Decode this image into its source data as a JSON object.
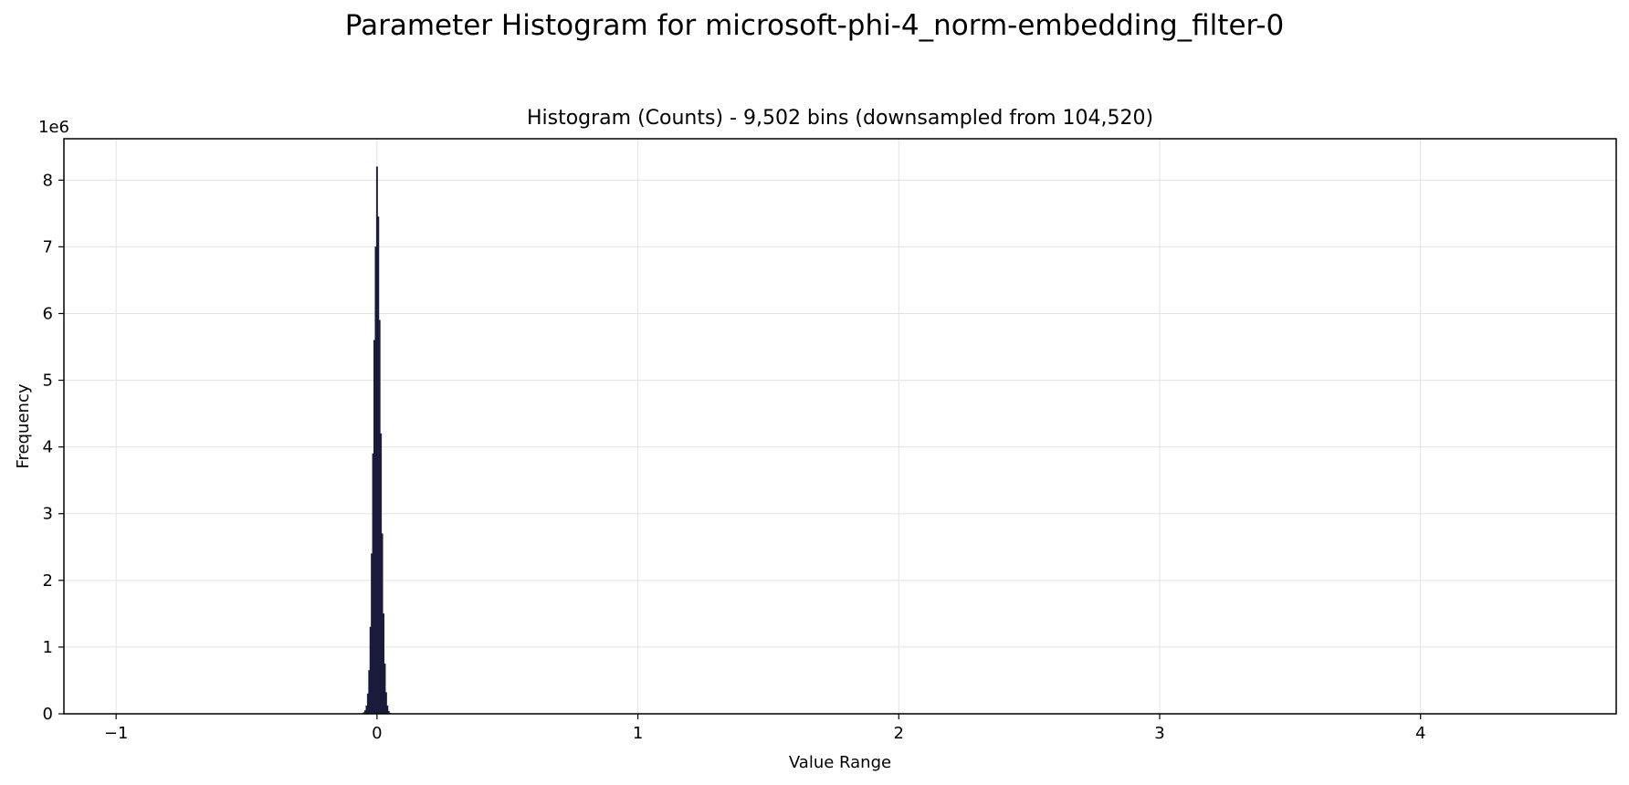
{
  "figure": {
    "suptitle": "Parameter Histogram for microsoft-phi-4_norm-embedding_filter-0"
  },
  "chart_data": {
    "type": "bar",
    "title": "Histogram (Counts) - 9,502 bins (downsampled from 104,520)",
    "xlabel": "Value Range",
    "ylabel": "Frequency",
    "y_scale_label": "1e6",
    "xlim": [
      -1.2,
      4.75
    ],
    "ylim": [
      0,
      8.62
    ],
    "y_unit": 1000000,
    "x_ticks": [
      -1,
      0,
      1,
      2,
      3,
      4
    ],
    "x_tick_labels": [
      "−1",
      "0",
      "1",
      "2",
      "3",
      "4"
    ],
    "y_ticks": [
      0,
      1,
      2,
      3,
      4,
      5,
      6,
      7,
      8
    ],
    "y_tick_labels": [
      "0",
      "1",
      "2",
      "3",
      "4",
      "5",
      "6",
      "7",
      "8"
    ],
    "grid": true,
    "bar_color": "#1a1a3a",
    "bins": {
      "x": [
        -0.05,
        -0.045,
        -0.04,
        -0.035,
        -0.03,
        -0.025,
        -0.02,
        -0.015,
        -0.01,
        -0.005,
        0.0,
        0.005,
        0.01,
        0.015,
        0.02,
        0.025,
        0.03,
        0.035,
        0.04,
        0.045,
        0.05
      ],
      "width": 0.005,
      "counts_millions": [
        0.02,
        0.05,
        0.12,
        0.3,
        0.65,
        1.3,
        2.4,
        3.9,
        5.6,
        7.0,
        8.2,
        7.45,
        5.9,
        4.2,
        2.7,
        1.5,
        0.75,
        0.32,
        0.12,
        0.04,
        0.01
      ]
    }
  }
}
